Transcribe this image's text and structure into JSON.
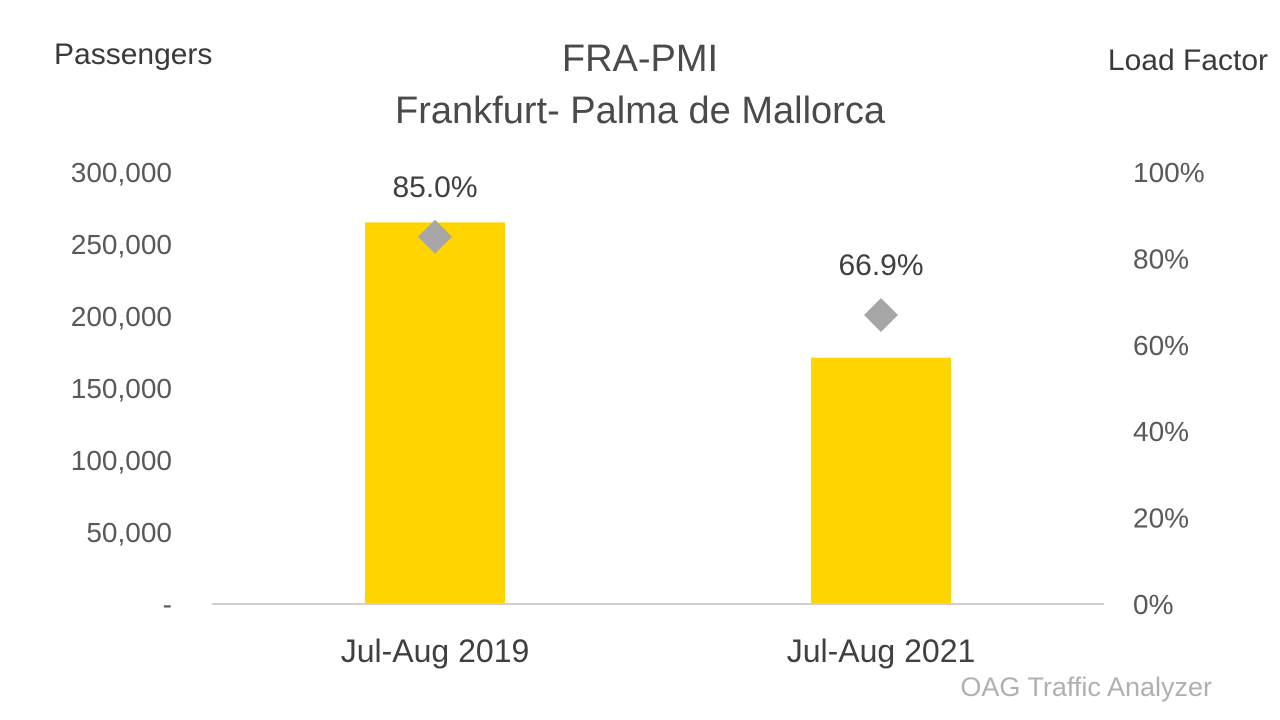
{
  "chart_data": {
    "type": "bar",
    "title": "FRA-PMI",
    "subtitle": "Frankfurt- Palma de Mallorca",
    "ylabel": "Passengers",
    "y2label": "Load Factor",
    "categories": [
      "Jul-Aug 2019",
      "Jul-Aug 2021"
    ],
    "series": [
      {
        "values": [
          265000,
          171000
        ],
        "color": "#FFD400",
        "axis": "left",
        "kind": "bar"
      },
      {
        "values": [
          85.0,
          66.9
        ],
        "color": "#A6A6A6",
        "axis": "right",
        "kind": "marker",
        "marker": "diamond",
        "data_labels": [
          "85.0%",
          "66.9%"
        ]
      }
    ],
    "ylim": [
      0,
      300000
    ],
    "y2lim": [
      0,
      100
    ],
    "yticks": [
      "-",
      "50,000",
      "100,000",
      "150,000",
      "200,000",
      "250,000",
      "300,000"
    ],
    "y2ticks": [
      "0%",
      "20%",
      "40%",
      "60%",
      "80%",
      "100%"
    ],
    "legend": "none",
    "grid": false
  },
  "source": "OAG Traffic Analyzer"
}
